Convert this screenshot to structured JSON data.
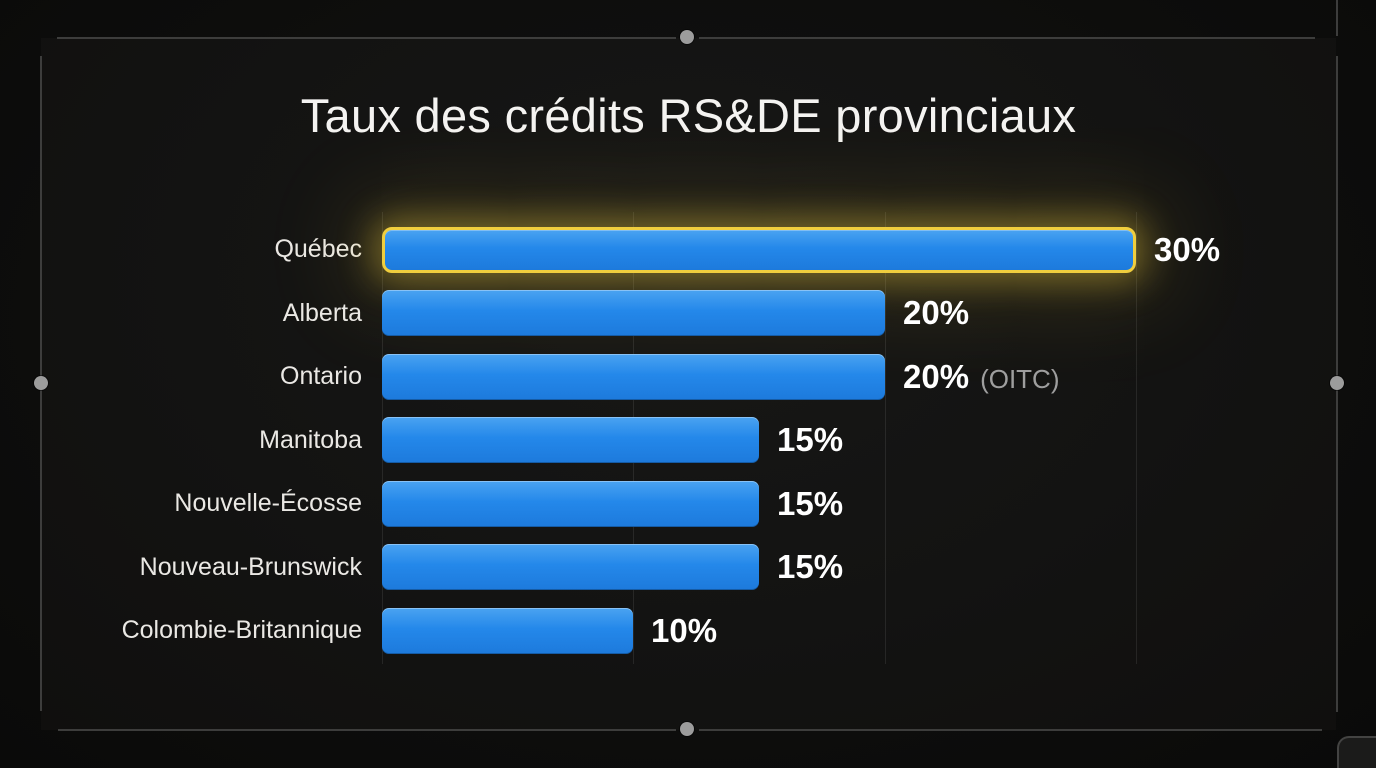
{
  "title": "Taux des crédits RS&DE provinciaux",
  "chart_data": {
    "type": "bar",
    "orientation": "horizontal",
    "title": "Taux des crédits RS&DE provinciaux",
    "categories": [
      "Québec",
      "Alberta",
      "Ontario",
      "Manitoba",
      "Nouvelle-Écosse",
      "Nouveau-Brunswick",
      "Colombie-Britannique"
    ],
    "values": [
      30,
      20,
      20,
      15,
      15,
      15,
      10
    ],
    "value_labels": [
      "30%",
      "20%",
      "20%",
      "15%",
      "15%",
      "15%",
      "10%"
    ],
    "notes": [
      "",
      "",
      "(OITC)",
      "",
      "",
      "",
      ""
    ],
    "highlighted_index": 0,
    "xlabel": "",
    "ylabel": "",
    "xlim": [
      0,
      30
    ],
    "gridline_values": [
      0,
      10,
      20,
      30
    ],
    "grid": true,
    "legend": false,
    "colors": {
      "bar": "#2488ea",
      "highlight_border": "#f0ce3e",
      "value_text": "#ffffff",
      "note_text": "#9e9e9e",
      "label_text": "#eae8e4",
      "background": "#131312"
    }
  },
  "icons": {
    "selection_handle": "filled gray circle"
  }
}
